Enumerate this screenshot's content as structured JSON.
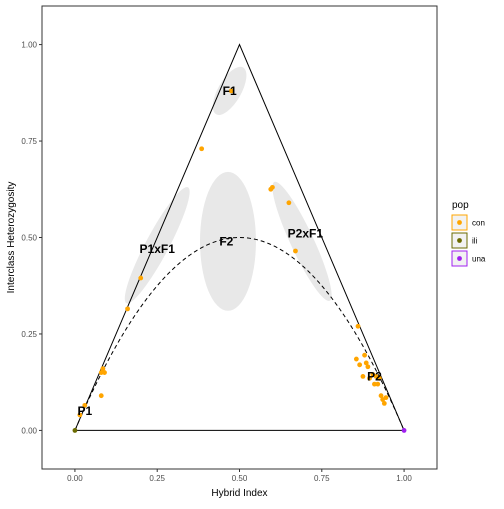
{
  "chart_data": {
    "type": "scatter",
    "title": "",
    "xlabel": "Hybrid Index",
    "ylabel": "Interclass Heterozygosity",
    "xlim": [
      -0.1,
      1.1
    ],
    "ylim": [
      -0.1,
      1.1
    ],
    "x_ticks": [
      "0.00",
      "0.25",
      "0.50",
      "0.75",
      "1.00"
    ],
    "x_tick_values": [
      0,
      0.25,
      0.5,
      0.75,
      1.0
    ],
    "y_ticks": [
      "0.00",
      "0.25",
      "0.50",
      "0.75",
      "1.00"
    ],
    "y_tick_values": [
      0,
      0.25,
      0.5,
      0.75,
      1.0
    ],
    "grid": false,
    "legend": {
      "title": "pop",
      "placement": "right",
      "entries": [
        {
          "label": "con",
          "color": "#FFA500"
        },
        {
          "label": "ili",
          "color": "#6B6B00"
        },
        {
          "label": "una",
          "color": "#A020F0"
        }
      ]
    },
    "region_labels": [
      {
        "label": "F1",
        "x": 0.47,
        "y": 0.88
      },
      {
        "label": "F2",
        "x": 0.46,
        "y": 0.49
      },
      {
        "label": "P1xF1",
        "x": 0.25,
        "y": 0.47
      },
      {
        "label": "P2xF1",
        "x": 0.7,
        "y": 0.51
      },
      {
        "label": "P1",
        "x": 0.03,
        "y": 0.05
      },
      {
        "label": "P2",
        "x": 0.91,
        "y": 0.14
      }
    ],
    "regions": [
      {
        "name": "F1",
        "cx": 0.47,
        "cy": 0.88,
        "rx": 0.035,
        "ry": 0.07,
        "angle": 30
      },
      {
        "name": "F2",
        "cx": 0.465,
        "cy": 0.49,
        "rx": 0.085,
        "ry": 0.18,
        "angle": 0
      },
      {
        "name": "P1xF1",
        "cx": 0.25,
        "cy": 0.48,
        "rx": 0.035,
        "ry": 0.17,
        "angle": 28
      },
      {
        "name": "P2xF1",
        "cx": 0.69,
        "cy": 0.49,
        "rx": 0.035,
        "ry": 0.17,
        "angle": -25
      }
    ],
    "triangle": [
      [
        0,
        0
      ],
      [
        0.5,
        1
      ],
      [
        1,
        0
      ]
    ],
    "baseline": [
      [
        0,
        0
      ],
      [
        1,
        0
      ]
    ],
    "parabola": "y = 2*x*(1-x)",
    "series": [
      {
        "name": "con",
        "color": "#FFA500",
        "points": [
          [
            0.475,
            0.88
          ],
          [
            0.385,
            0.73
          ],
          [
            0.6,
            0.63
          ],
          [
            0.595,
            0.625
          ],
          [
            0.65,
            0.59
          ],
          [
            0.67,
            0.465
          ],
          [
            0.2,
            0.395
          ],
          [
            0.16,
            0.315
          ],
          [
            0.085,
            0.16
          ],
          [
            0.08,
            0.15
          ],
          [
            0.09,
            0.15
          ],
          [
            0.08,
            0.09
          ],
          [
            0.03,
            0.065
          ],
          [
            0.015,
            0.04
          ],
          [
            0.86,
            0.27
          ],
          [
            0.855,
            0.185
          ],
          [
            0.865,
            0.17
          ],
          [
            0.88,
            0.195
          ],
          [
            0.885,
            0.175
          ],
          [
            0.89,
            0.165
          ],
          [
            0.875,
            0.14
          ],
          [
            0.895,
            0.135
          ],
          [
            0.905,
            0.145
          ],
          [
            0.91,
            0.12
          ],
          [
            0.92,
            0.12
          ],
          [
            0.925,
            0.135
          ],
          [
            0.915,
            0.14
          ],
          [
            0.93,
            0.09
          ],
          [
            0.935,
            0.08
          ],
          [
            0.945,
            0.085
          ],
          [
            0.94,
            0.07
          ]
        ]
      },
      {
        "name": "ili",
        "color": "#6B6B00",
        "points": [
          [
            0.0,
            0.0
          ]
        ]
      },
      {
        "name": "una",
        "color": "#A020F0",
        "points": [
          [
            1.0,
            0.0
          ]
        ]
      }
    ]
  }
}
